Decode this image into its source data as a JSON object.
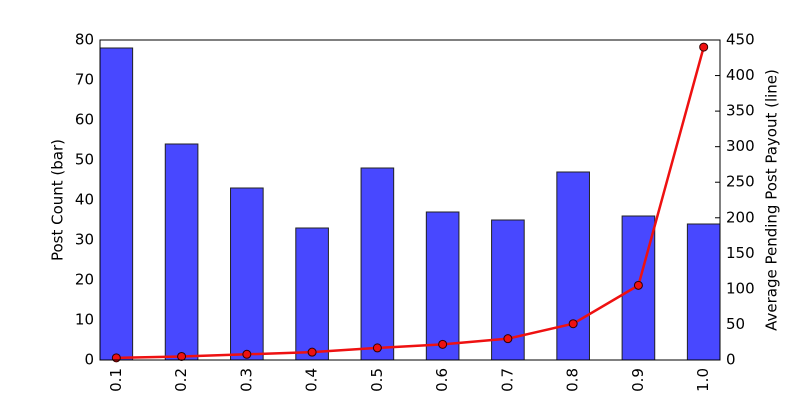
{
  "chart_data": {
    "type": "bar",
    "categories": [
      "0.1",
      "0.2",
      "0.3",
      "0.4",
      "0.5",
      "0.6",
      "0.7",
      "0.8",
      "0.9",
      "1.0"
    ],
    "series": [
      {
        "type": "bar",
        "color": "#4848ff",
        "values": [
          78,
          54,
          43,
          33,
          48,
          37,
          35,
          47,
          36,
          34
        ]
      },
      {
        "type": "line",
        "axis": "y2",
        "color": "#ee1111",
        "values": [
          3,
          5,
          8,
          11,
          17,
          22,
          30,
          51,
          105,
          440
        ]
      }
    ],
    "ylabel": "Post Count (bar)",
    "y2label": "Average Pending Post Payout (line)",
    "ylim": [
      0,
      80
    ],
    "yticks": [
      0,
      10,
      20,
      30,
      40,
      50,
      60,
      70,
      80
    ],
    "y2lim": [
      0,
      450
    ],
    "y2ticks": [
      0,
      50,
      100,
      150,
      200,
      250,
      300,
      350,
      400,
      450
    ]
  }
}
